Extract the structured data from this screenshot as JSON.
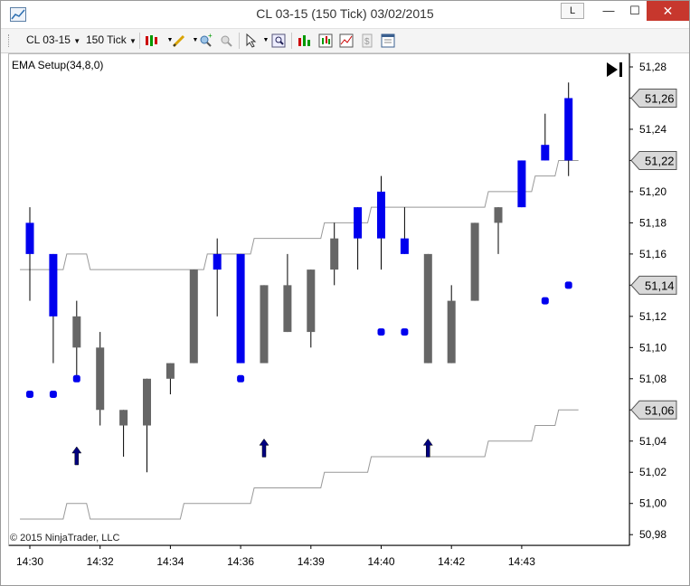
{
  "window": {
    "title": "CL 03-15 (150 Tick)  03/02/2015",
    "l_button": "L",
    "minimize_glyph": "—",
    "maximize_glyph": "☐",
    "close_glyph": "✕"
  },
  "toolbar": {
    "instrument": "CL 03-15",
    "interval": "150 Tick",
    "icons": [
      "candlestick-icon",
      "drawing-pencil-icon",
      "zoom-in-icon",
      "zoom-out-icon",
      "cursor-icon",
      "magnifier-icon",
      "strategies-icon",
      "indicators-icon",
      "chart-trader-icon",
      "dollar-icon",
      "properties-icon"
    ]
  },
  "chart": {
    "indicator_label": "EMA Setup(34,8,0)",
    "copyright": "© 2015 NinjaTrader, LLC",
    "colors": {
      "up_bar": "#0000ee",
      "neutral_bar": "#666666",
      "signal_dot": "#0000ee",
      "ema_line": "#999999",
      "arrow": "#000080",
      "price_tag_bg": "#d9d9d9"
    }
  },
  "chart_data": {
    "type": "candlestick",
    "title": "EMA Setup(34,8,0)",
    "ylim": [
      50.97,
      51.29
    ],
    "y_ticks": [
      "51,28",
      "51,26",
      "51,24",
      "51,22",
      "51,20",
      "51,18",
      "51,16",
      "51,14",
      "51,12",
      "51,10",
      "51,08",
      "51,06",
      "51,04",
      "51,02",
      "51,00",
      "50,98"
    ],
    "y_tick_values": [
      51.28,
      51.26,
      51.24,
      51.22,
      51.2,
      51.18,
      51.16,
      51.14,
      51.12,
      51.1,
      51.08,
      51.06,
      51.04,
      51.02,
      51.0,
      50.98
    ],
    "x_labels": [
      "14:30",
      "14:32",
      "14:34",
      "14:36",
      "14:39",
      "14:40",
      "14:42",
      "14:43"
    ],
    "x_label_bar_index": [
      0,
      3,
      6,
      9,
      12,
      15,
      18,
      21
    ],
    "price_tags": [
      {
        "label": "51,26",
        "value": 51.26
      },
      {
        "label": "51,22",
        "value": 51.22
      },
      {
        "label": "51,14",
        "value": 51.14
      },
      {
        "label": "51,06",
        "value": 51.06
      }
    ],
    "bars": [
      {
        "open": 51.16,
        "high": 51.19,
        "low": 51.13,
        "close": 51.18,
        "color": "blue"
      },
      {
        "open": 51.16,
        "high": 51.16,
        "low": 51.09,
        "close": 51.12,
        "color": "blue"
      },
      {
        "open": 51.12,
        "high": 51.13,
        "low": 51.08,
        "close": 51.1,
        "color": "gray"
      },
      {
        "open": 51.1,
        "high": 51.11,
        "low": 51.05,
        "close": 51.06,
        "color": "gray"
      },
      {
        "open": 51.06,
        "high": 51.06,
        "low": 51.03,
        "close": 51.05,
        "color": "gray"
      },
      {
        "open": 51.08,
        "high": 51.08,
        "low": 51.02,
        "close": 51.05,
        "color": "gray"
      },
      {
        "open": 51.09,
        "high": 51.09,
        "low": 51.07,
        "close": 51.08,
        "color": "gray"
      },
      {
        "open": 51.15,
        "high": 51.15,
        "low": 51.09,
        "close": 51.09,
        "color": "gray"
      },
      {
        "open": 51.16,
        "high": 51.17,
        "low": 51.12,
        "close": 51.15,
        "color": "blue"
      },
      {
        "open": 51.16,
        "high": 51.16,
        "low": 51.09,
        "close": 51.09,
        "color": "blue"
      },
      {
        "open": 51.14,
        "high": 51.14,
        "low": 51.09,
        "close": 51.09,
        "color": "gray"
      },
      {
        "open": 51.14,
        "high": 51.16,
        "low": 51.11,
        "close": 51.11,
        "color": "gray"
      },
      {
        "open": 51.15,
        "high": 51.15,
        "low": 51.1,
        "close": 51.11,
        "color": "gray"
      },
      {
        "open": 51.17,
        "high": 51.18,
        "low": 51.14,
        "close": 51.15,
        "color": "gray"
      },
      {
        "open": 51.19,
        "high": 51.19,
        "low": 51.15,
        "close": 51.17,
        "color": "blue"
      },
      {
        "open": 51.2,
        "high": 51.21,
        "low": 51.15,
        "close": 51.17,
        "color": "blue"
      },
      {
        "open": 51.17,
        "high": 51.19,
        "low": 51.16,
        "close": 51.16,
        "color": "blue"
      },
      {
        "open": 51.16,
        "high": 51.16,
        "low": 51.09,
        "close": 51.09,
        "color": "gray"
      },
      {
        "open": 51.13,
        "high": 51.14,
        "low": 51.09,
        "close": 51.09,
        "color": "gray"
      },
      {
        "open": 51.18,
        "high": 51.18,
        "low": 51.13,
        "close": 51.13,
        "color": "gray"
      },
      {
        "open": 51.19,
        "high": 51.19,
        "low": 51.16,
        "close": 51.18,
        "color": "gray"
      },
      {
        "open": 51.22,
        "high": 51.22,
        "low": 51.19,
        "close": 51.19,
        "color": "blue"
      },
      {
        "open": 51.23,
        "high": 51.25,
        "low": 51.22,
        "close": 51.22,
        "color": "blue"
      },
      {
        "open": 51.26,
        "high": 51.27,
        "low": 51.21,
        "close": 51.22,
        "color": "blue"
      }
    ],
    "upper_line": [
      51.15,
      51.15,
      51.16,
      51.15,
      51.15,
      51.15,
      51.15,
      51.15,
      51.16,
      51.16,
      51.17,
      51.17,
      51.17,
      51.18,
      51.18,
      51.19,
      51.19,
      51.19,
      51.19,
      51.19,
      51.2,
      51.2,
      51.21,
      51.22
    ],
    "lower_line": [
      50.99,
      50.99,
      51.0,
      50.99,
      50.99,
      50.99,
      50.99,
      51.0,
      51.0,
      51.0,
      51.01,
      51.01,
      51.01,
      51.02,
      51.02,
      51.03,
      51.03,
      51.03,
      51.03,
      51.03,
      51.04,
      51.04,
      51.05,
      51.06
    ],
    "signal_dots": [
      {
        "bar": 0,
        "value": 51.07
      },
      {
        "bar": 1,
        "value": 51.07
      },
      {
        "bar": 2,
        "value": 51.08
      },
      {
        "bar": 9,
        "value": 51.08
      },
      {
        "bar": 15,
        "value": 51.11
      },
      {
        "bar": 16,
        "value": 51.11
      },
      {
        "bar": 22,
        "value": 51.13
      },
      {
        "bar": 23,
        "value": 51.14
      }
    ],
    "up_arrows": [
      {
        "bar": 2,
        "value": 51.03
      },
      {
        "bar": 10,
        "value": 51.035
      },
      {
        "bar": 17,
        "value": 51.035
      }
    ]
  }
}
